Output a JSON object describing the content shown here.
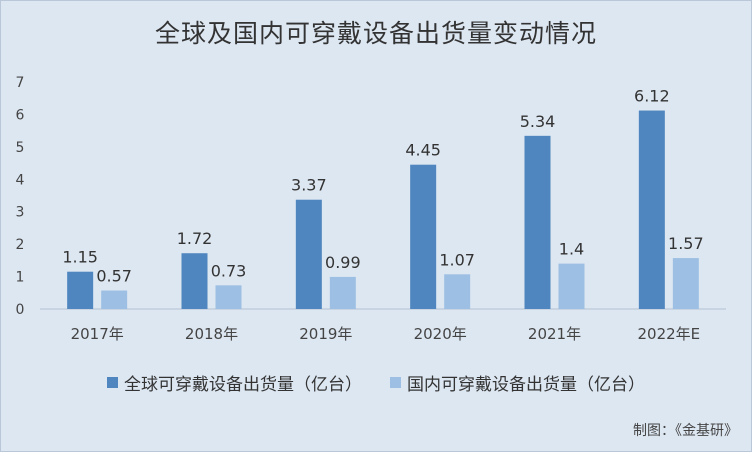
{
  "chart_data": {
    "type": "bar",
    "title": "全球及国内可穿戴设备出货量变动情况",
    "categories": [
      "2017年",
      "2018年",
      "2019年",
      "2020年",
      "2021年",
      "2022年E"
    ],
    "series": [
      {
        "name": "全球可穿戴设备出货量（亿台）",
        "values": [
          1.15,
          1.72,
          3.37,
          4.45,
          5.34,
          6.12
        ],
        "color": "#4f86bf"
      },
      {
        "name": "国内可穿戴设备出货量（亿台）",
        "values": [
          0.57,
          0.73,
          0.99,
          1.07,
          1.4,
          1.57
        ],
        "color": "#9dbfe3"
      }
    ],
    "yticks": [
      0,
      1,
      2,
      3,
      4,
      5,
      6,
      7
    ],
    "ylim": [
      0,
      7
    ],
    "grid": false,
    "legend_position": "bottom",
    "data_labels": [
      "1.15",
      "1.72",
      "3.37",
      "4.45",
      "5.34",
      "6.12",
      "0.57",
      "0.73",
      "0.99",
      "1.07",
      "1.4",
      "1.57"
    ]
  },
  "footer": {
    "credit": "制图：《金基研》"
  }
}
